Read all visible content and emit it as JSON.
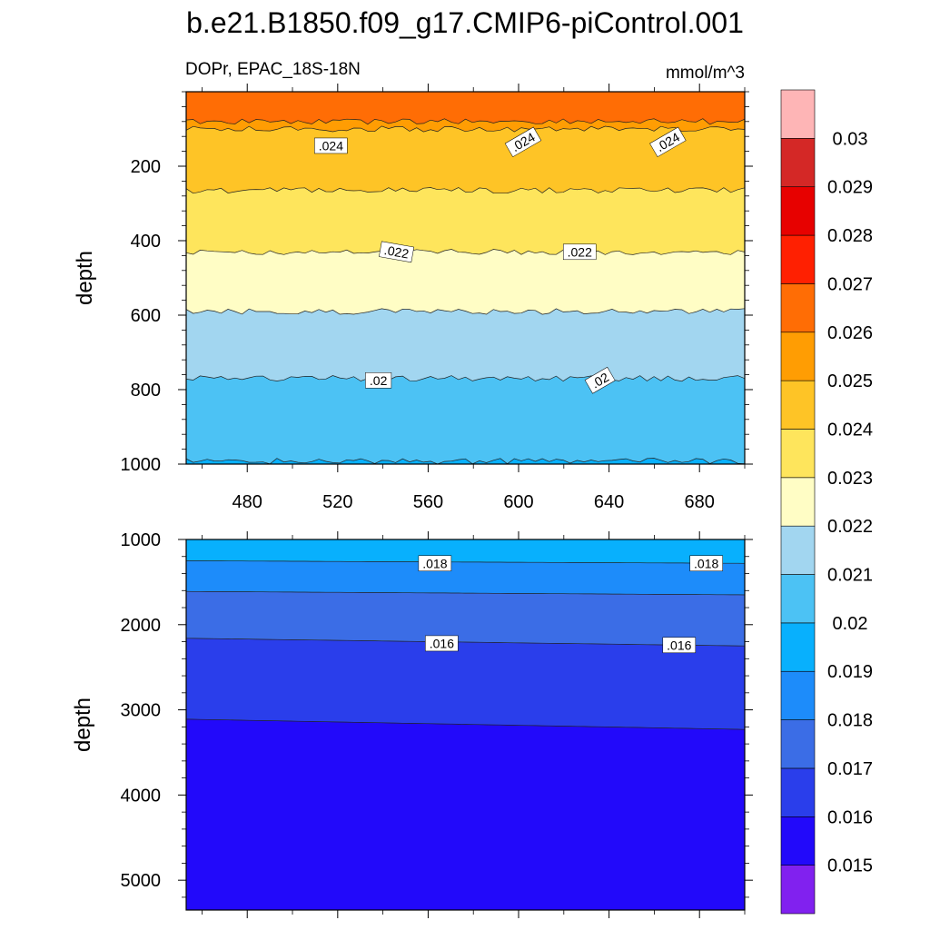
{
  "chart_data": {
    "type": "contour",
    "title": "b.e21.B1850.f09_g17.CMIP6-piControl.001",
    "subtitle_left": "DOPr, EPAC_18S-18N",
    "units": "mmol/m^3",
    "xlabel": "",
    "ylabel": "depth",
    "xlim": [
      453,
      700
    ],
    "x_ticks": [
      480,
      520,
      560,
      600,
      640,
      680
    ],
    "panels": [
      {
        "name": "upper",
        "ylim": [
          0,
          1000
        ],
        "y_reversed": true,
        "y_ticks": [
          200,
          400,
          600,
          800,
          1000
        ],
        "contour_levels_shown": [
          {
            "value": 0.025,
            "depth": 80
          },
          {
            "value": 0.024,
            "depth": 100
          },
          {
            "value": 0.023,
            "depth": 265
          },
          {
            "value": 0.022,
            "depth": 430
          },
          {
            "value": 0.021,
            "depth": 590
          },
          {
            "value": 0.02,
            "depth": 770
          },
          {
            "value": 0.019,
            "depth": 992
          }
        ],
        "contour_labels": [
          {
            "text": ".024",
            "x": 517,
            "depth": 145
          },
          {
            "text": ".024",
            "x": 602,
            "depth": 135
          },
          {
            "text": ".024",
            "x": 666,
            "depth": 135
          },
          {
            "text": ".022",
            "x": 546,
            "depth": 430
          },
          {
            "text": ".022",
            "x": 627,
            "depth": 430
          },
          {
            "text": ".02",
            "x": 538,
            "depth": 775
          },
          {
            "text": ".02",
            "x": 636,
            "depth": 775
          }
        ]
      },
      {
        "name": "lower",
        "ylim": [
          1000,
          5350
        ],
        "y_reversed": true,
        "y_ticks": [
          1000,
          2000,
          3000,
          4000,
          5000
        ],
        "contour_levels_shown": [
          {
            "value": 0.018,
            "depth_left": 1250,
            "depth_right": 1280
          },
          {
            "value": 0.017,
            "depth_left": 1610,
            "depth_right": 1650
          },
          {
            "value": 0.016,
            "depth_left": 2160,
            "depth_right": 2250
          },
          {
            "value": 0.015,
            "depth_left": 3110,
            "depth_right": 3230
          }
        ],
        "contour_labels": [
          {
            "text": ".018",
            "x": 563,
            "depth": 1280
          },
          {
            "text": ".018",
            "x": 683,
            "depth": 1280
          },
          {
            "text": ".016",
            "x": 566,
            "depth": 2220
          },
          {
            "text": ".016",
            "x": 671,
            "depth": 2240
          }
        ]
      }
    ],
    "colorbar": {
      "levels": [
        "0.015",
        "0.016",
        "0.017",
        "0.018",
        "0.019",
        "0.02",
        "0.021",
        "0.022",
        "0.023",
        "0.024",
        "0.025",
        "0.026",
        "0.027",
        "0.028",
        "0.029",
        "0.03"
      ],
      "colors": [
        "#8121ef",
        "#2209fa",
        "#2a3eeb",
        "#3b6de6",
        "#1d8cfa",
        "#08b0fd",
        "#4cc2f4",
        "#a2d6f0",
        "#fffdc5",
        "#fee55c",
        "#fec426",
        "#ff9d03",
        "#ff6d05",
        "#ff2001",
        "#e70100",
        "#d42826",
        "#feb5b6"
      ]
    }
  }
}
